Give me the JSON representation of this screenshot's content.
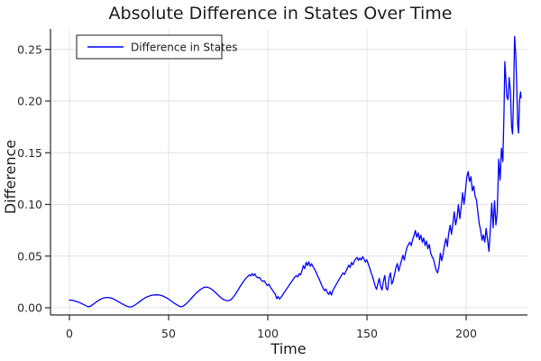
{
  "chart_data": {
    "type": "line",
    "title": "Absolute Difference in States Over Time",
    "xlabel": "Time",
    "ylabel": "Difference",
    "xlim": [
      0,
      228
    ],
    "ylim": [
      0,
      0.2625
    ],
    "grid": "both",
    "background": "#ffffff",
    "x_ticks": {
      "values": [
        0,
        50,
        100,
        150,
        200
      ],
      "labels": [
        "0",
        "50",
        "100",
        "150",
        "200"
      ]
    },
    "y_ticks": {
      "values": [
        0,
        0.05,
        0.1,
        0.15,
        0.2,
        0.25
      ],
      "labels": [
        "0.00",
        "0.05",
        "0.10",
        "0.15",
        "0.20",
        "0.25"
      ]
    },
    "legend": {
      "position": "top-left",
      "entries": [
        {
          "label": "Difference in States",
          "color": "#0000ff"
        }
      ]
    },
    "series": [
      {
        "name": "Difference in States",
        "color": "#0000ff",
        "points": [
          [
            0,
            0.0075
          ],
          [
            1.5,
            0.0072
          ],
          [
            3,
            0.0065
          ],
          [
            4.5,
            0.0055
          ],
          [
            6,
            0.0042
          ],
          [
            7.5,
            0.0028
          ],
          [
            8.7,
            0.0016
          ],
          [
            9.5,
            0.001
          ],
          [
            10.3,
            0.0013
          ],
          [
            11.5,
            0.0026
          ],
          [
            13,
            0.0048
          ],
          [
            14.5,
            0.0068
          ],
          [
            16,
            0.0085
          ],
          [
            17.5,
            0.0096
          ],
          [
            19,
            0.01
          ],
          [
            20.5,
            0.0097
          ],
          [
            22,
            0.0087
          ],
          [
            23.5,
            0.0072
          ],
          [
            25,
            0.0055
          ],
          [
            26.5,
            0.0038
          ],
          [
            28,
            0.0023
          ],
          [
            29.3,
            0.0012
          ],
          [
            30.5,
            0.0008
          ],
          [
            31.8,
            0.0012
          ],
          [
            33,
            0.0025
          ],
          [
            34.5,
            0.0046
          ],
          [
            36,
            0.0068
          ],
          [
            37.5,
            0.0088
          ],
          [
            39,
            0.0104
          ],
          [
            40.5,
            0.0115
          ],
          [
            42,
            0.0122
          ],
          [
            43.5,
            0.0125
          ],
          [
            45,
            0.0124
          ],
          [
            46.5,
            0.0118
          ],
          [
            48,
            0.0106
          ],
          [
            49.5,
            0.009
          ],
          [
            51,
            0.007
          ],
          [
            52.5,
            0.0049
          ],
          [
            54,
            0.003
          ],
          [
            55.3,
            0.0016
          ],
          [
            56.3,
            0.001
          ],
          [
            57.3,
            0.0016
          ],
          [
            58.5,
            0.0032
          ],
          [
            60,
            0.006
          ],
          [
            61.5,
            0.0092
          ],
          [
            63,
            0.0124
          ],
          [
            64.5,
            0.0152
          ],
          [
            66,
            0.0176
          ],
          [
            67.3,
            0.0192
          ],
          [
            68.5,
            0.02
          ],
          [
            69.7,
            0.0198
          ],
          [
            71,
            0.0188
          ],
          [
            72.3,
            0.017
          ],
          [
            73.6,
            0.0148
          ],
          [
            75,
            0.0122
          ],
          [
            76.3,
            0.0098
          ],
          [
            77.6,
            0.008
          ],
          [
            79,
            0.007
          ],
          [
            80.2,
            0.0068
          ],
          [
            81.4,
            0.0078
          ],
          [
            82.6,
            0.0102
          ],
          [
            83.8,
            0.0135
          ],
          [
            85,
            0.0172
          ],
          [
            86.2,
            0.021
          ],
          [
            87.4,
            0.0245
          ],
          [
            88.4,
            0.0272
          ],
          [
            89.2,
            0.029
          ],
          [
            90,
            0.0305
          ],
          [
            90.7,
            0.032
          ],
          [
            91.4,
            0.0308
          ],
          [
            92.1,
            0.033
          ],
          [
            92.8,
            0.0312
          ],
          [
            93.5,
            0.0328
          ],
          [
            94.2,
            0.0302
          ],
          [
            95,
            0.0288
          ],
          [
            95.8,
            0.0294
          ],
          [
            96.6,
            0.027
          ],
          [
            97.4,
            0.0255
          ],
          [
            98.2,
            0.0262
          ],
          [
            99,
            0.0235
          ],
          [
            99.8,
            0.0215
          ],
          [
            100.6,
            0.0228
          ],
          [
            101.4,
            0.0196
          ],
          [
            102.2,
            0.0176
          ],
          [
            103,
            0.015
          ],
          [
            103.8,
            0.0132
          ],
          [
            104.5,
            0.0088
          ],
          [
            105.2,
            0.0108
          ],
          [
            105.9,
            0.0085
          ],
          [
            107,
            0.011
          ],
          [
            108,
            0.014
          ],
          [
            109,
            0.0168
          ],
          [
            110,
            0.0196
          ],
          [
            111,
            0.0225
          ],
          [
            112,
            0.0252
          ],
          [
            112.8,
            0.0275
          ],
          [
            113.6,
            0.0296
          ],
          [
            114.4,
            0.0312
          ],
          [
            115.1,
            0.0298
          ],
          [
            115.8,
            0.033
          ],
          [
            116.5,
            0.0318
          ],
          [
            117.2,
            0.0355
          ],
          [
            117.9,
            0.0408
          ],
          [
            118.6,
            0.0378
          ],
          [
            119.3,
            0.044
          ],
          [
            120,
            0.0408
          ],
          [
            120.7,
            0.0445
          ],
          [
            121.4,
            0.0402
          ],
          [
            122.1,
            0.0425
          ],
          [
            122.8,
            0.0398
          ],
          [
            123.5,
            0.0375
          ],
          [
            124.3,
            0.0345
          ],
          [
            125,
            0.0312
          ],
          [
            125.8,
            0.0282
          ],
          [
            126.5,
            0.025
          ],
          [
            127.2,
            0.0218
          ],
          [
            127.9,
            0.0188
          ],
          [
            128.6,
            0.0165
          ],
          [
            129.3,
            0.0182
          ],
          [
            130,
            0.0148
          ],
          [
            130.7,
            0.0128
          ],
          [
            131.4,
            0.0158
          ],
          [
            132.1,
            0.0122
          ],
          [
            132.8,
            0.0168
          ],
          [
            133.5,
            0.0192
          ],
          [
            134.2,
            0.0215
          ],
          [
            135.2,
            0.0248
          ],
          [
            136.2,
            0.0282
          ],
          [
            137.2,
            0.0315
          ],
          [
            138,
            0.0338
          ],
          [
            138.7,
            0.0322
          ],
          [
            139.4,
            0.0355
          ],
          [
            140.1,
            0.0382
          ],
          [
            140.8,
            0.0412
          ],
          [
            141.5,
            0.039
          ],
          [
            142.2,
            0.0438
          ],
          [
            142.9,
            0.0415
          ],
          [
            143.6,
            0.0452
          ],
          [
            144.3,
            0.0472
          ],
          [
            145,
            0.0488
          ],
          [
            145.7,
            0.0458
          ],
          [
            146.4,
            0.0482
          ],
          [
            147.1,
            0.0462
          ],
          [
            147.8,
            0.0495
          ],
          [
            148.5,
            0.047
          ],
          [
            149.2,
            0.0442
          ],
          [
            149.9,
            0.0465
          ],
          [
            150.6,
            0.0428
          ],
          [
            151.3,
            0.0388
          ],
          [
            152,
            0.0342
          ],
          [
            152.7,
            0.0308
          ],
          [
            153.4,
            0.0262
          ],
          [
            154.1,
            0.0212
          ],
          [
            154.8,
            0.0178
          ],
          [
            155.5,
            0.0232
          ],
          [
            156.2,
            0.0285
          ],
          [
            156.9,
            0.0205
          ],
          [
            157.6,
            0.0172
          ],
          [
            158.3,
            0.0262
          ],
          [
            159,
            0.0312
          ],
          [
            159.7,
            0.0188
          ],
          [
            160.4,
            0.0172
          ],
          [
            161.1,
            0.0288
          ],
          [
            161.8,
            0.0338
          ],
          [
            162.5,
            0.0228
          ],
          [
            163.2,
            0.0262
          ],
          [
            163.9,
            0.0325
          ],
          [
            164.6,
            0.0388
          ],
          [
            165.3,
            0.0428
          ],
          [
            166,
            0.0355
          ],
          [
            166.7,
            0.0408
          ],
          [
            167.4,
            0.0458
          ],
          [
            168.1,
            0.0508
          ],
          [
            168.8,
            0.0462
          ],
          [
            169.5,
            0.0532
          ],
          [
            170.2,
            0.0585
          ],
          [
            170.9,
            0.0612
          ],
          [
            171.6,
            0.0635
          ],
          [
            172.3,
            0.0602
          ],
          [
            173,
            0.0658
          ],
          [
            173.7,
            0.0695
          ],
          [
            174.4,
            0.0748
          ],
          [
            175.1,
            0.0682
          ],
          [
            175.8,
            0.0725
          ],
          [
            176.5,
            0.0658
          ],
          [
            177.2,
            0.0702
          ],
          [
            177.9,
            0.0632
          ],
          [
            178.6,
            0.0675
          ],
          [
            179.3,
            0.0602
          ],
          [
            180,
            0.0645
          ],
          [
            180.7,
            0.0572
          ],
          [
            181.4,
            0.0612
          ],
          [
            182.1,
            0.0532
          ],
          [
            182.8,
            0.0495
          ],
          [
            183.5,
            0.0472
          ],
          [
            184.2,
            0.0418
          ],
          [
            184.9,
            0.0362
          ],
          [
            185.6,
            0.0338
          ],
          [
            186.3,
            0.0402
          ],
          [
            187,
            0.0528
          ],
          [
            187.7,
            0.0455
          ],
          [
            188.4,
            0.0522
          ],
          [
            189.1,
            0.0608
          ],
          [
            189.8,
            0.0672
          ],
          [
            190.5,
            0.0592
          ],
          [
            191.2,
            0.0718
          ],
          [
            191.9,
            0.0798
          ],
          [
            192.6,
            0.0712
          ],
          [
            193.3,
            0.0815
          ],
          [
            194,
            0.0928
          ],
          [
            194.7,
            0.0802
          ],
          [
            195.4,
            0.0872
          ],
          [
            196.1,
            0.0998
          ],
          [
            196.8,
            0.0862
          ],
          [
            197.5,
            0.0975
          ],
          [
            198.2,
            0.1112
          ],
          [
            198.9,
            0.1002
          ],
          [
            199.6,
            0.1122
          ],
          [
            200.3,
            0.1265
          ],
          [
            201,
            0.1318
          ],
          [
            201.7,
            0.1222
          ],
          [
            202.4,
            0.1268
          ],
          [
            203.1,
            0.1132
          ],
          [
            203.8,
            0.1178
          ],
          [
            204.5,
            0.1082
          ],
          [
            205.2,
            0.1045
          ],
          [
            205.9,
            0.0925
          ],
          [
            206.6,
            0.0815
          ],
          [
            207.3,
            0.0745
          ],
          [
            208,
            0.0652
          ],
          [
            208.7,
            0.0705
          ],
          [
            209.4,
            0.0635
          ],
          [
            210.1,
            0.0768
          ],
          [
            210.8,
            0.0655
          ],
          [
            211.5,
            0.0545
          ],
          [
            212.2,
            0.0762
          ],
          [
            212.9,
            0.1012
          ],
          [
            213.6,
            0.0775
          ],
          [
            214.3,
            0.1035
          ],
          [
            215,
            0.0802
          ],
          [
            215.7,
            0.0925
          ],
          [
            216.4,
            0.1438
          ],
          [
            217.1,
            0.1235
          ],
          [
            217.8,
            0.1545
          ],
          [
            218.5,
            0.1415
          ],
          [
            219.1,
            0.1902
          ],
          [
            219.5,
            0.2382
          ],
          [
            220,
            0.2222
          ],
          [
            220.5,
            0.2038
          ],
          [
            221.1,
            0.2015
          ],
          [
            221.7,
            0.2228
          ],
          [
            222.3,
            0.2092
          ],
          [
            222.9,
            0.1748
          ],
          [
            223.4,
            0.1682
          ],
          [
            223.9,
            0.2052
          ],
          [
            224.4,
            0.2625
          ],
          [
            225,
            0.2448
          ],
          [
            225.5,
            0.2152
          ],
          [
            226,
            0.1768
          ],
          [
            226.4,
            0.1692
          ],
          [
            226.9,
            0.2002
          ],
          [
            227.4,
            0.2088
          ],
          [
            227.7,
            0.2032
          ]
        ]
      }
    ]
  },
  "colors": {
    "series": "#0000ff",
    "grid": "#e2e2e2",
    "axis": "#2a2a2a",
    "text": "#1c1c1c",
    "background": "#ffffff"
  }
}
